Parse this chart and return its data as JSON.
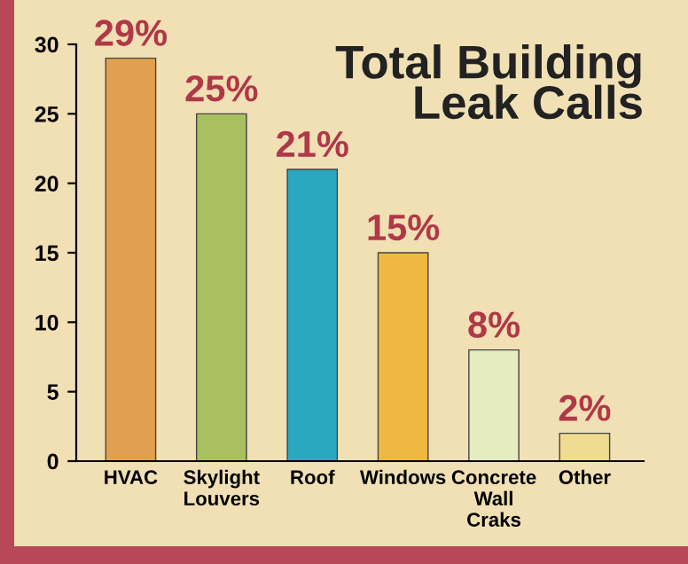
{
  "chart_data": {
    "type": "bar",
    "title": "Total Building\nLeak Calls",
    "categories": [
      "HVAC",
      "Skylight\nLouvers",
      "Roof",
      "Windows",
      "Concrete\nWall\nCraks",
      "Other"
    ],
    "values": [
      29,
      25,
      21,
      15,
      8,
      2
    ],
    "colors": [
      "#e0a050",
      "#a8c060",
      "#2aa8c0",
      "#f0b840",
      "#e4ecc0",
      "#f0dc90"
    ],
    "value_labels": [
      "29%",
      "25%",
      "21%",
      "15%",
      "8%",
      "2%"
    ],
    "ylim": [
      0,
      30
    ],
    "yticks": [
      0,
      5,
      10,
      15,
      20,
      25,
      30
    ],
    "grid": false,
    "legend": false
  }
}
